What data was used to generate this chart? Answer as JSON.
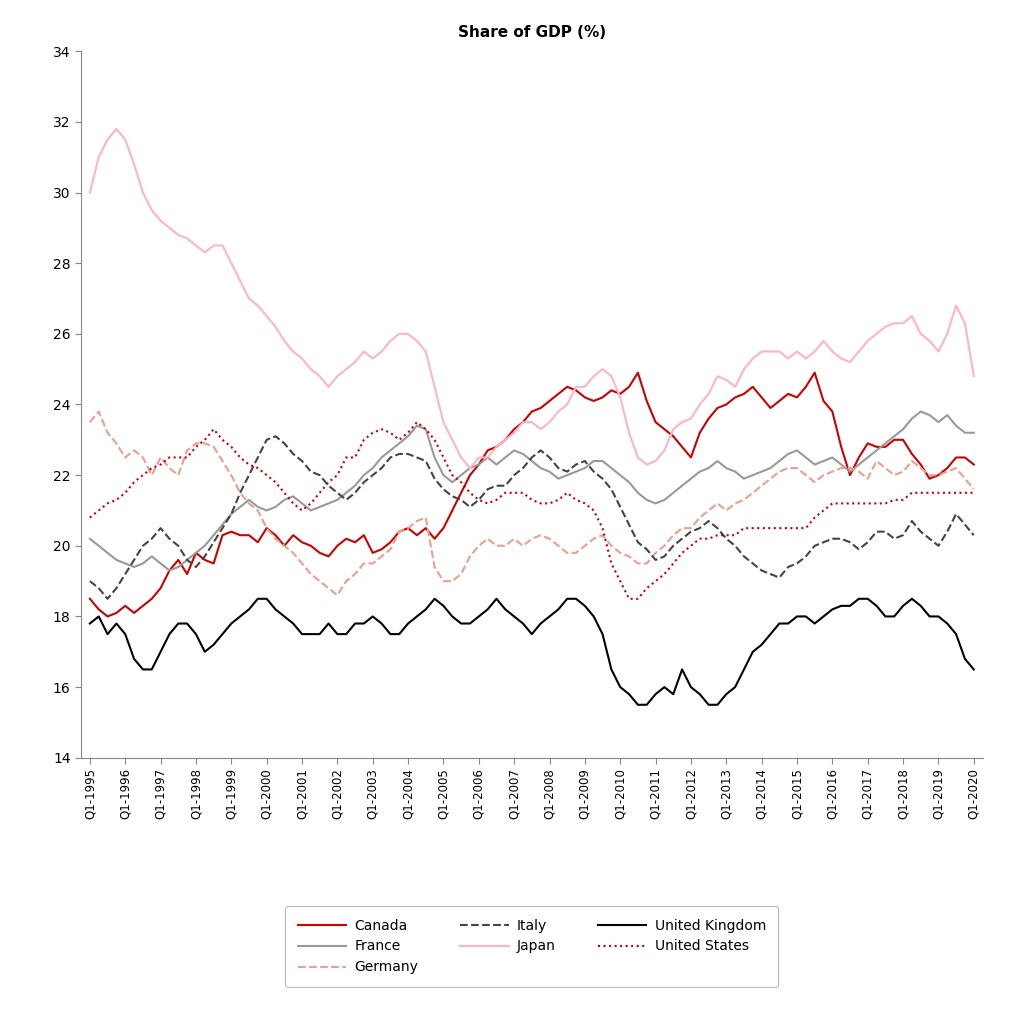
{
  "title": "Share of GDP (%)",
  "ylim": [
    14,
    34
  ],
  "yticks": [
    14,
    16,
    18,
    20,
    22,
    24,
    26,
    28,
    30,
    32,
    34
  ],
  "background_color": "#ffffff",
  "title_fontsize": 11,
  "series": {
    "Canada": {
      "color": "#cc0000",
      "linestyle": "solid",
      "linewidth": 1.5,
      "data": [
        18.5,
        18.2,
        18.0,
        18.1,
        18.3,
        18.1,
        18.3,
        18.5,
        18.8,
        19.3,
        19.6,
        19.2,
        19.8,
        19.6,
        19.5,
        20.3,
        20.4,
        20.3,
        20.3,
        20.1,
        20.5,
        20.3,
        20.0,
        20.3,
        20.1,
        20.0,
        19.8,
        19.7,
        20.0,
        20.2,
        20.1,
        20.3,
        19.8,
        19.9,
        20.1,
        20.4,
        20.5,
        20.3,
        20.5,
        20.2,
        20.5,
        21.0,
        21.5,
        22.0,
        22.3,
        22.7,
        22.8,
        23.0,
        23.3,
        23.5,
        23.8,
        23.9,
        24.1,
        24.3,
        24.5,
        24.4,
        24.2,
        24.1,
        24.2,
        24.4,
        24.3,
        24.5,
        24.9,
        24.1,
        23.5,
        23.3,
        23.1,
        22.8,
        22.5,
        23.2,
        23.6,
        23.9,
        24.0,
        24.2,
        24.3,
        24.5,
        24.2,
        23.9,
        24.1,
        24.3,
        24.2,
        24.5,
        24.9,
        24.1,
        23.8,
        22.8,
        22.0,
        22.5,
        22.9,
        22.8,
        22.8,
        23.0,
        23.0,
        22.6,
        22.3,
        21.9,
        22.0,
        22.2,
        22.5,
        22.5,
        22.3
      ]
    },
    "France": {
      "color": "#999999",
      "linestyle": "solid",
      "linewidth": 1.5,
      "data": [
        20.2,
        20.0,
        19.8,
        19.6,
        19.5,
        19.4,
        19.5,
        19.7,
        19.5,
        19.3,
        19.4,
        19.6,
        19.8,
        20.0,
        20.3,
        20.6,
        20.9,
        21.1,
        21.3,
        21.1,
        21.0,
        21.1,
        21.3,
        21.4,
        21.2,
        21.0,
        21.1,
        21.2,
        21.3,
        21.5,
        21.7,
        22.0,
        22.2,
        22.5,
        22.7,
        22.9,
        23.1,
        23.4,
        23.3,
        22.5,
        22.0,
        21.8,
        22.0,
        22.2,
        22.3,
        22.5,
        22.3,
        22.5,
        22.7,
        22.6,
        22.4,
        22.2,
        22.1,
        21.9,
        22.0,
        22.1,
        22.2,
        22.4,
        22.4,
        22.2,
        22.0,
        21.8,
        21.5,
        21.3,
        21.2,
        21.3,
        21.5,
        21.7,
        21.9,
        22.1,
        22.2,
        22.4,
        22.2,
        22.1,
        21.9,
        22.0,
        22.1,
        22.2,
        22.4,
        22.6,
        22.7,
        22.5,
        22.3,
        22.4,
        22.5,
        22.3,
        22.1,
        22.3,
        22.5,
        22.7,
        22.9,
        23.1,
        23.3,
        23.6,
        23.8,
        23.7,
        23.5,
        23.7,
        23.4,
        23.2,
        23.2
      ]
    },
    "Germany": {
      "color": "#e8a090",
      "linestyle": "dashed",
      "linewidth": 1.5,
      "data": [
        23.5,
        23.8,
        23.2,
        22.9,
        22.5,
        22.7,
        22.5,
        22.0,
        22.5,
        22.2,
        22.0,
        22.7,
        22.9,
        22.9,
        22.8,
        22.4,
        22.0,
        21.5,
        21.2,
        21.0,
        20.5,
        20.2,
        20.0,
        19.8,
        19.5,
        19.2,
        19.0,
        18.8,
        18.6,
        19.0,
        19.2,
        19.5,
        19.5,
        19.7,
        19.9,
        20.4,
        20.5,
        20.7,
        20.8,
        19.4,
        19.0,
        19.0,
        19.2,
        19.7,
        20.0,
        20.2,
        20.0,
        20.0,
        20.2,
        20.0,
        20.2,
        20.3,
        20.2,
        20.0,
        19.8,
        19.8,
        20.0,
        20.2,
        20.3,
        20.0,
        19.8,
        19.7,
        19.5,
        19.5,
        19.8,
        20.0,
        20.3,
        20.5,
        20.5,
        20.8,
        21.0,
        21.2,
        21.0,
        21.2,
        21.3,
        21.5,
        21.7,
        21.9,
        22.1,
        22.2,
        22.2,
        22.0,
        21.8,
        22.0,
        22.1,
        22.2,
        22.2,
        22.1,
        21.9,
        22.4,
        22.2,
        22.0,
        22.1,
        22.4,
        22.2,
        22.0,
        22.0,
        22.1,
        22.2,
        21.9,
        21.6
      ]
    },
    "Italy": {
      "color": "#444444",
      "linestyle": "dashed",
      "linewidth": 1.5,
      "data": [
        19.0,
        18.8,
        18.5,
        18.8,
        19.2,
        19.6,
        20.0,
        20.2,
        20.5,
        20.2,
        20.0,
        19.6,
        19.4,
        19.7,
        20.1,
        20.5,
        20.9,
        21.5,
        22.0,
        22.5,
        23.0,
        23.1,
        22.9,
        22.6,
        22.4,
        22.1,
        22.0,
        21.7,
        21.5,
        21.3,
        21.5,
        21.8,
        22.0,
        22.2,
        22.5,
        22.6,
        22.6,
        22.5,
        22.4,
        21.9,
        21.6,
        21.4,
        21.3,
        21.1,
        21.3,
        21.6,
        21.7,
        21.7,
        22.0,
        22.2,
        22.5,
        22.7,
        22.5,
        22.2,
        22.1,
        22.3,
        22.4,
        22.1,
        21.9,
        21.6,
        21.1,
        20.6,
        20.1,
        19.9,
        19.6,
        19.7,
        20.0,
        20.2,
        20.4,
        20.5,
        20.7,
        20.5,
        20.2,
        20.0,
        19.7,
        19.5,
        19.3,
        19.2,
        19.1,
        19.4,
        19.5,
        19.7,
        20.0,
        20.1,
        20.2,
        20.2,
        20.1,
        19.9,
        20.1,
        20.4,
        20.4,
        20.2,
        20.3,
        20.7,
        20.4,
        20.2,
        20.0,
        20.4,
        20.9,
        20.6,
        20.3
      ]
    },
    "Japan": {
      "color": "#ffb3c6",
      "linestyle": "solid",
      "linewidth": 1.5,
      "data": [
        30.0,
        31.0,
        31.5,
        31.8,
        31.5,
        30.8,
        30.0,
        29.5,
        29.2,
        29.0,
        28.8,
        28.7,
        28.5,
        28.3,
        28.5,
        28.5,
        28.0,
        27.5,
        27.0,
        26.8,
        26.5,
        26.2,
        25.8,
        25.5,
        25.3,
        25.0,
        24.8,
        24.5,
        24.8,
        25.0,
        25.2,
        25.5,
        25.3,
        25.5,
        25.8,
        26.0,
        26.0,
        25.8,
        25.5,
        24.5,
        23.5,
        23.0,
        22.5,
        22.2,
        22.5,
        22.5,
        22.8,
        23.0,
        23.2,
        23.5,
        23.5,
        23.3,
        23.5,
        23.8,
        24.0,
        24.5,
        24.5,
        24.8,
        25.0,
        24.8,
        24.2,
        23.2,
        22.5,
        22.3,
        22.4,
        22.7,
        23.3,
        23.5,
        23.6,
        24.0,
        24.3,
        24.8,
        24.7,
        24.5,
        25.0,
        25.3,
        25.5,
        25.5,
        25.5,
        25.3,
        25.5,
        25.3,
        25.5,
        25.8,
        25.5,
        25.3,
        25.2,
        25.5,
        25.8,
        26.0,
        26.2,
        26.3,
        26.3,
        26.5,
        26.0,
        25.8,
        25.5,
        26.0,
        26.8,
        26.3,
        24.8
      ]
    },
    "United Kingdom": {
      "color": "#000000",
      "linestyle": "solid",
      "linewidth": 1.5,
      "data": [
        17.8,
        18.0,
        17.5,
        17.8,
        17.5,
        16.8,
        16.5,
        16.5,
        17.0,
        17.5,
        17.8,
        17.8,
        17.5,
        17.0,
        17.2,
        17.5,
        17.8,
        18.0,
        18.2,
        18.5,
        18.5,
        18.2,
        18.0,
        17.8,
        17.5,
        17.5,
        17.5,
        17.8,
        17.5,
        17.5,
        17.8,
        17.8,
        18.0,
        17.8,
        17.5,
        17.5,
        17.8,
        18.0,
        18.2,
        18.5,
        18.3,
        18.0,
        17.8,
        17.8,
        18.0,
        18.2,
        18.5,
        18.2,
        18.0,
        17.8,
        17.5,
        17.8,
        18.0,
        18.2,
        18.5,
        18.5,
        18.3,
        18.0,
        17.5,
        16.5,
        16.0,
        15.8,
        15.5,
        15.5,
        15.8,
        16.0,
        15.8,
        16.5,
        16.0,
        15.8,
        15.5,
        15.5,
        15.8,
        16.0,
        16.5,
        17.0,
        17.2,
        17.5,
        17.8,
        17.8,
        18.0,
        18.0,
        17.8,
        18.0,
        18.2,
        18.3,
        18.3,
        18.5,
        18.5,
        18.3,
        18.0,
        18.0,
        18.3,
        18.5,
        18.3,
        18.0,
        18.0,
        17.8,
        17.5,
        16.8,
        16.5
      ]
    },
    "United States": {
      "color": "#cc0000",
      "linestyle": "dotted",
      "linewidth": 1.5,
      "data": [
        20.8,
        21.0,
        21.2,
        21.3,
        21.5,
        21.8,
        22.0,
        22.2,
        22.3,
        22.5,
        22.5,
        22.5,
        22.8,
        23.0,
        23.3,
        23.0,
        22.8,
        22.5,
        22.3,
        22.2,
        22.0,
        21.8,
        21.5,
        21.2,
        21.0,
        21.2,
        21.5,
        21.8,
        22.0,
        22.5,
        22.5,
        23.0,
        23.2,
        23.3,
        23.2,
        23.0,
        23.2,
        23.5,
        23.3,
        23.0,
        22.5,
        22.0,
        21.8,
        21.5,
        21.3,
        21.2,
        21.3,
        21.5,
        21.5,
        21.5,
        21.3,
        21.2,
        21.2,
        21.3,
        21.5,
        21.3,
        21.2,
        21.0,
        20.5,
        19.5,
        19.0,
        18.5,
        18.5,
        18.8,
        19.0,
        19.2,
        19.5,
        19.8,
        20.0,
        20.2,
        20.2,
        20.3,
        20.3,
        20.3,
        20.5,
        20.5,
        20.5,
        20.5,
        20.5,
        20.5,
        20.5,
        20.5,
        20.8,
        21.0,
        21.2,
        21.2,
        21.2,
        21.2,
        21.2,
        21.2,
        21.2,
        21.3,
        21.3,
        21.5,
        21.5,
        21.5,
        21.5,
        21.5,
        21.5,
        21.5,
        21.5
      ]
    }
  },
  "legend_order": [
    "Canada",
    "France",
    "Germany",
    "Italy",
    "Japan",
    "United Kingdom",
    "United States"
  ]
}
